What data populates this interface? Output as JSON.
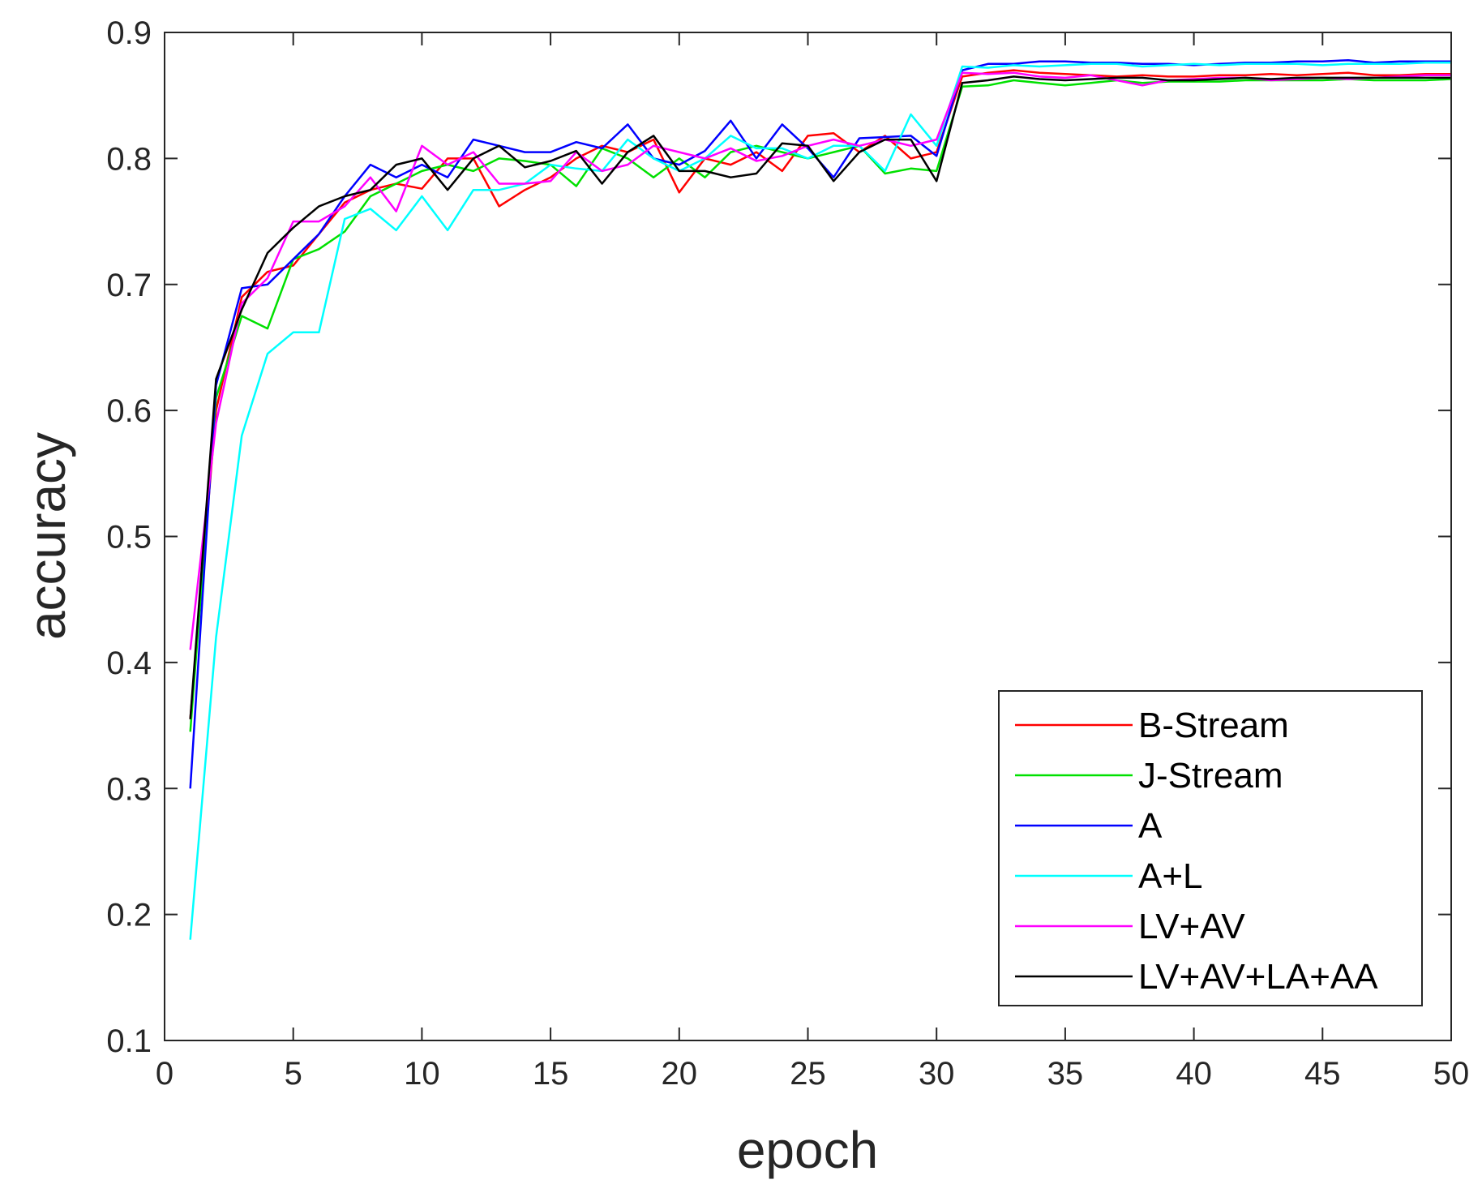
{
  "chart_data": {
    "type": "line",
    "title": "",
    "xlabel": "epoch",
    "ylabel": "accuracy",
    "xlim": [
      0,
      50
    ],
    "ylim": [
      0.1,
      0.9
    ],
    "xticks": [
      0,
      5,
      10,
      15,
      20,
      25,
      30,
      35,
      40,
      45,
      50
    ],
    "yticks": [
      0.1,
      0.2,
      0.3,
      0.4,
      0.5,
      0.6,
      0.7,
      0.8,
      0.9
    ],
    "xtick_labels": [
      "0",
      "5",
      "10",
      "15",
      "20",
      "25",
      "30",
      "35",
      "40",
      "45",
      "50"
    ],
    "ytick_labels": [
      "0.1",
      "0.2",
      "0.3",
      "0.4",
      "0.5",
      "0.6",
      "0.7",
      "0.8",
      "0.9"
    ],
    "grid": false,
    "legend_position": "bottom-right",
    "x": [
      1,
      2,
      3,
      4,
      5,
      6,
      7,
      8,
      9,
      10,
      11,
      12,
      13,
      14,
      15,
      16,
      17,
      18,
      19,
      20,
      21,
      22,
      23,
      24,
      25,
      26,
      27,
      28,
      29,
      30,
      31,
      32,
      33,
      34,
      35,
      36,
      37,
      38,
      39,
      40,
      41,
      42,
      43,
      44,
      45,
      46,
      47,
      48,
      49,
      50
    ],
    "series": [
      {
        "name": "B-Stream",
        "color": "#ff0000",
        "values": [
          0.355,
          0.6,
          0.69,
          0.71,
          0.715,
          0.74,
          0.765,
          0.775,
          0.78,
          0.776,
          0.8,
          0.8,
          0.762,
          0.775,
          0.785,
          0.8,
          0.81,
          0.805,
          0.815,
          0.773,
          0.8,
          0.795,
          0.805,
          0.79,
          0.818,
          0.82,
          0.805,
          0.818,
          0.8,
          0.805,
          0.865,
          0.868,
          0.87,
          0.868,
          0.867,
          0.866,
          0.865,
          0.866,
          0.865,
          0.865,
          0.866,
          0.866,
          0.867,
          0.866,
          0.867,
          0.868,
          0.866,
          0.866,
          0.867,
          0.867
        ]
      },
      {
        "name": "J-Stream",
        "color": "#00e000",
        "values": [
          0.345,
          0.61,
          0.675,
          0.665,
          0.72,
          0.728,
          0.742,
          0.77,
          0.78,
          0.79,
          0.795,
          0.79,
          0.8,
          0.798,
          0.795,
          0.778,
          0.808,
          0.8,
          0.785,
          0.8,
          0.785,
          0.805,
          0.81,
          0.805,
          0.8,
          0.805,
          0.81,
          0.788,
          0.792,
          0.79,
          0.857,
          0.858,
          0.862,
          0.86,
          0.858,
          0.86,
          0.862,
          0.86,
          0.861,
          0.861,
          0.861,
          0.862,
          0.862,
          0.862,
          0.862,
          0.863,
          0.862,
          0.862,
          0.862,
          0.863
        ]
      },
      {
        "name": "A",
        "color": "#0000ff",
        "values": [
          0.3,
          0.62,
          0.697,
          0.7,
          0.72,
          0.74,
          0.77,
          0.795,
          0.785,
          0.795,
          0.785,
          0.815,
          0.81,
          0.805,
          0.805,
          0.813,
          0.808,
          0.827,
          0.8,
          0.795,
          0.806,
          0.83,
          0.8,
          0.827,
          0.808,
          0.785,
          0.816,
          0.817,
          0.818,
          0.802,
          0.87,
          0.875,
          0.875,
          0.877,
          0.877,
          0.876,
          0.876,
          0.875,
          0.875,
          0.874,
          0.875,
          0.876,
          0.876,
          0.877,
          0.877,
          0.878,
          0.876,
          0.877,
          0.877,
          0.877
        ]
      },
      {
        "name": "A+L",
        "color": "#00ffff",
        "values": [
          0.18,
          0.42,
          0.58,
          0.645,
          0.662,
          0.662,
          0.752,
          0.76,
          0.743,
          0.77,
          0.743,
          0.775,
          0.775,
          0.78,
          0.795,
          0.792,
          0.79,
          0.815,
          0.8,
          0.79,
          0.8,
          0.818,
          0.808,
          0.808,
          0.8,
          0.81,
          0.81,
          0.79,
          0.835,
          0.81,
          0.873,
          0.872,
          0.874,
          0.873,
          0.874,
          0.875,
          0.875,
          0.873,
          0.874,
          0.875,
          0.874,
          0.875,
          0.875,
          0.875,
          0.874,
          0.875,
          0.875,
          0.875,
          0.876,
          0.876
        ]
      },
      {
        "name": "LV+AV",
        "color": "#ff00ff",
        "values": [
          0.41,
          0.59,
          0.685,
          0.705,
          0.75,
          0.75,
          0.762,
          0.785,
          0.758,
          0.81,
          0.795,
          0.805,
          0.78,
          0.78,
          0.782,
          0.805,
          0.79,
          0.795,
          0.81,
          0.805,
          0.8,
          0.808,
          0.798,
          0.802,
          0.81,
          0.815,
          0.81,
          0.815,
          0.81,
          0.815,
          0.868,
          0.867,
          0.868,
          0.865,
          0.864,
          0.866,
          0.862,
          0.858,
          0.862,
          0.863,
          0.864,
          0.864,
          0.862,
          0.863,
          0.864,
          0.863,
          0.864,
          0.865,
          0.866,
          0.866
        ]
      },
      {
        "name": "LV+AV+LA+AA",
        "color": "#000000",
        "values": [
          0.355,
          0.625,
          0.68,
          0.725,
          0.745,
          0.762,
          0.77,
          0.775,
          0.795,
          0.8,
          0.775,
          0.8,
          0.81,
          0.793,
          0.798,
          0.806,
          0.78,
          0.805,
          0.818,
          0.79,
          0.79,
          0.785,
          0.788,
          0.812,
          0.81,
          0.782,
          0.805,
          0.815,
          0.815,
          0.782,
          0.86,
          0.862,
          0.865,
          0.863,
          0.862,
          0.863,
          0.864,
          0.864,
          0.862,
          0.862,
          0.863,
          0.864,
          0.863,
          0.864,
          0.864,
          0.864,
          0.864,
          0.864,
          0.864,
          0.864
        ]
      }
    ]
  }
}
